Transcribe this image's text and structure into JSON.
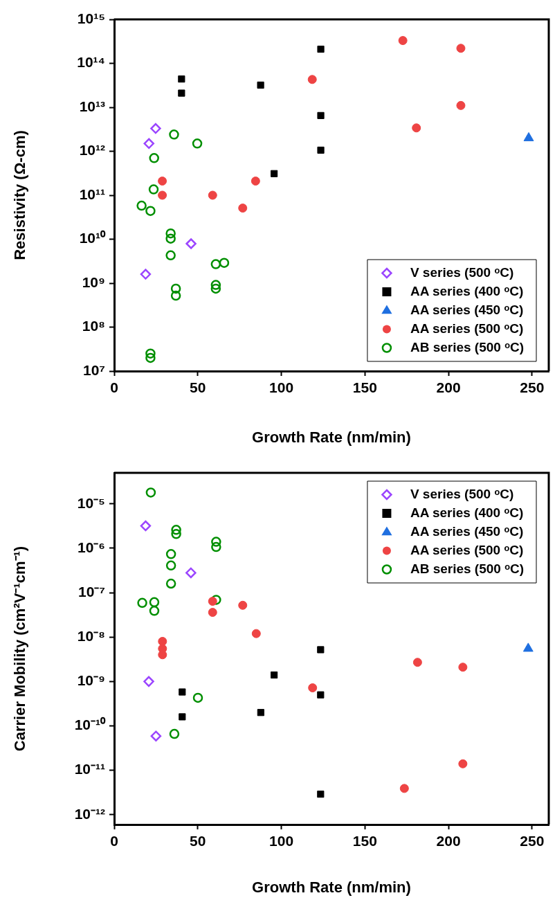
{
  "chart_data": [
    {
      "type": "scatter",
      "xlabel": "Growth Rate (nm/min)",
      "ylabel": "Resistivity (Ω-cm)",
      "log": "y",
      "xlim": [
        0,
        260
      ],
      "xticks": [
        0,
        50,
        100,
        150,
        200,
        250
      ],
      "ylim": [
        10000000.0,
        1000000000000000.0
      ],
      "yticks": [
        {
          "value": 10000000.0,
          "label": "10⁷"
        },
        {
          "value": 100000000.0,
          "label": "10⁸"
        },
        {
          "value": 1000000000.0,
          "label": "10⁹"
        },
        {
          "value": 10000000000.0,
          "label": "10¹⁰"
        },
        {
          "value": 100000000000.0,
          "label": "10¹¹"
        },
        {
          "value": 1000000000000.0,
          "label": "10¹²"
        },
        {
          "value": 10000000000000.0,
          "label": "10¹³"
        },
        {
          "value": 100000000000000.0,
          "label": "10¹⁴"
        },
        {
          "value": 1000000000000000.0,
          "label": "10¹⁵"
        }
      ],
      "grid": false,
      "legend": "bottom right",
      "series": [
        {
          "name": "V series (500 ᵒC)",
          "color": "#9b45ff",
          "marker": "diamond",
          "x": [
            24.8,
            20.8,
            46,
            18.8
          ],
          "values": [
            3300000000000.0,
            1500000000000.0,
            7900000000.0,
            1600000000.0
          ]
        },
        {
          "name": "AA series (400 ᵒC)",
          "color": "#000000",
          "marker": "square",
          "x": [
            123.6,
            40.3,
            40.3,
            87.6,
            123.6,
            123.6,
            95.7
          ],
          "values": [
            210000000000000.0,
            44000000000000.0,
            21000000000000.0,
            32000000000000.0,
            6500000000000.0,
            1060000000000.0,
            310000000000.0
          ]
        },
        {
          "name": "AA series (450 ᵒC)",
          "color": "#1f6fe0",
          "marker": "triangle",
          "x": [
            248
          ],
          "values": [
            2000000000000.0
          ]
        },
        {
          "name": "AA series (500 ᵒC)",
          "color": "#ee4444",
          "marker": "circle",
          "x": [
            118.5,
            172.7,
            207.4,
            207.4,
            180.8,
            28.8,
            28.8,
            58.9,
            84.6,
            76.9
          ],
          "values": [
            43000000000000.0,
            330000000000000.0,
            220000000000000.0,
            11000000000000.0,
            3400000000000.0,
            210000000000.0,
            100000000000.0,
            100000000000.0,
            210000000000.0,
            51000000000.0
          ]
        },
        {
          "name": "AB series (500 ᵒC)",
          "color": "#008f00",
          "x": [
            35.8,
            49.7,
            23.9,
            23.6,
            16.4,
            21.7,
            33.8,
            33.8,
            33.8,
            60.8,
            65.8,
            60.8,
            60.8,
            36.9,
            36.9,
            21.7,
            21.7
          ],
          "values": [
            2400000000000.0,
            1500000000000.0,
            700000000000.0,
            136000000000.0,
            58000000000.0,
            44000000000.0,
            13500000000.0,
            10300000000.0,
            4300000000.0,
            2700000000.0,
            2900000000.0,
            910000000.0,
            750000000.0,
            750000000.0,
            520000000.0,
            25000000.0,
            20000000.0
          ]
        }
      ]
    },
    {
      "type": "scatter",
      "xlabel": "Growth Rate (nm/min)",
      "ylabel": "Carrier Mobility (cm²V⁻¹cm⁻¹)",
      "log": "y",
      "xlim": [
        0,
        260
      ],
      "xticks": [
        0,
        50,
        100,
        150,
        200,
        250
      ],
      "ylim": [
        6e-13,
        5e-05
      ],
      "yticks": [
        {
          "value": 1e-12,
          "label": "10⁻¹²"
        },
        {
          "value": 1e-11,
          "label": "10⁻¹¹"
        },
        {
          "value": 1e-10,
          "label": "10⁻¹⁰"
        },
        {
          "value": 1e-09,
          "label": "10⁻⁹"
        },
        {
          "value": 1e-08,
          "label": "10⁻⁸"
        },
        {
          "value": 1e-07,
          "label": "10⁻⁷"
        },
        {
          "value": 1e-06,
          "label": "10⁻⁶"
        },
        {
          "value": 1e-05,
          "label": "10⁻⁵"
        }
      ],
      "grid": false,
      "legend": "top right",
      "series": [
        {
          "name": "V series (500 ᵒC)",
          "color": "#9b45ff",
          "marker": "diamond",
          "x": [
            18.8,
            45.9,
            20.7,
            25
          ],
          "values": [
            3.2e-06,
            2.8e-07,
            1e-09,
            5.9e-11
          ]
        },
        {
          "name": "AA series (400 ᵒC)",
          "color": "#000000",
          "marker": "square",
          "x": [
            40.7,
            40.7,
            87.7,
            95.7,
            123.5,
            123.5,
            123.5
          ],
          "values": [
            5.8e-10,
            1.6e-10,
            2e-10,
            1.4e-09,
            5.2e-09,
            5e-10,
            2.9e-12
          ]
        },
        {
          "name": "AA series (450 ᵒC)",
          "color": "#1f6fe0",
          "marker": "triangle",
          "x": [
            247.7
          ],
          "values": [
            5.5e-09
          ]
        },
        {
          "name": "AA series (500 ᵒC)",
          "color": "#ee4444",
          "marker": "circle",
          "x": [
            28.9,
            28.9,
            28.9,
            58.9,
            58.9,
            76.9,
            85,
            118.7,
            181.5,
            208.6,
            208.6,
            173.6
          ],
          "values": [
            8e-09,
            5.5e-09,
            4e-09,
            6.4e-08,
            3.6e-08,
            5.2e-08,
            1.2e-08,
            7.2e-10,
            2.7e-09,
            2.1e-09,
            1.4e-11,
            3.9e-12
          ]
        },
        {
          "name": "AB series (500 ᵒC)",
          "color": "#008f00",
          "x": [
            21.9,
            37.1,
            37.1,
            61,
            61,
            34,
            34,
            34,
            16.8,
            24,
            24,
            61,
            50.1,
            36
          ],
          "values": [
            1.8e-05,
            2.6e-06,
            2.1e-06,
            1.4e-06,
            1.07e-06,
            7.4e-07,
            4.1e-07,
            1.6e-07,
            5.9e-08,
            6.1e-08,
            3.9e-08,
            6.9e-08,
            4.3e-10,
            6.6e-11
          ]
        }
      ]
    }
  ]
}
